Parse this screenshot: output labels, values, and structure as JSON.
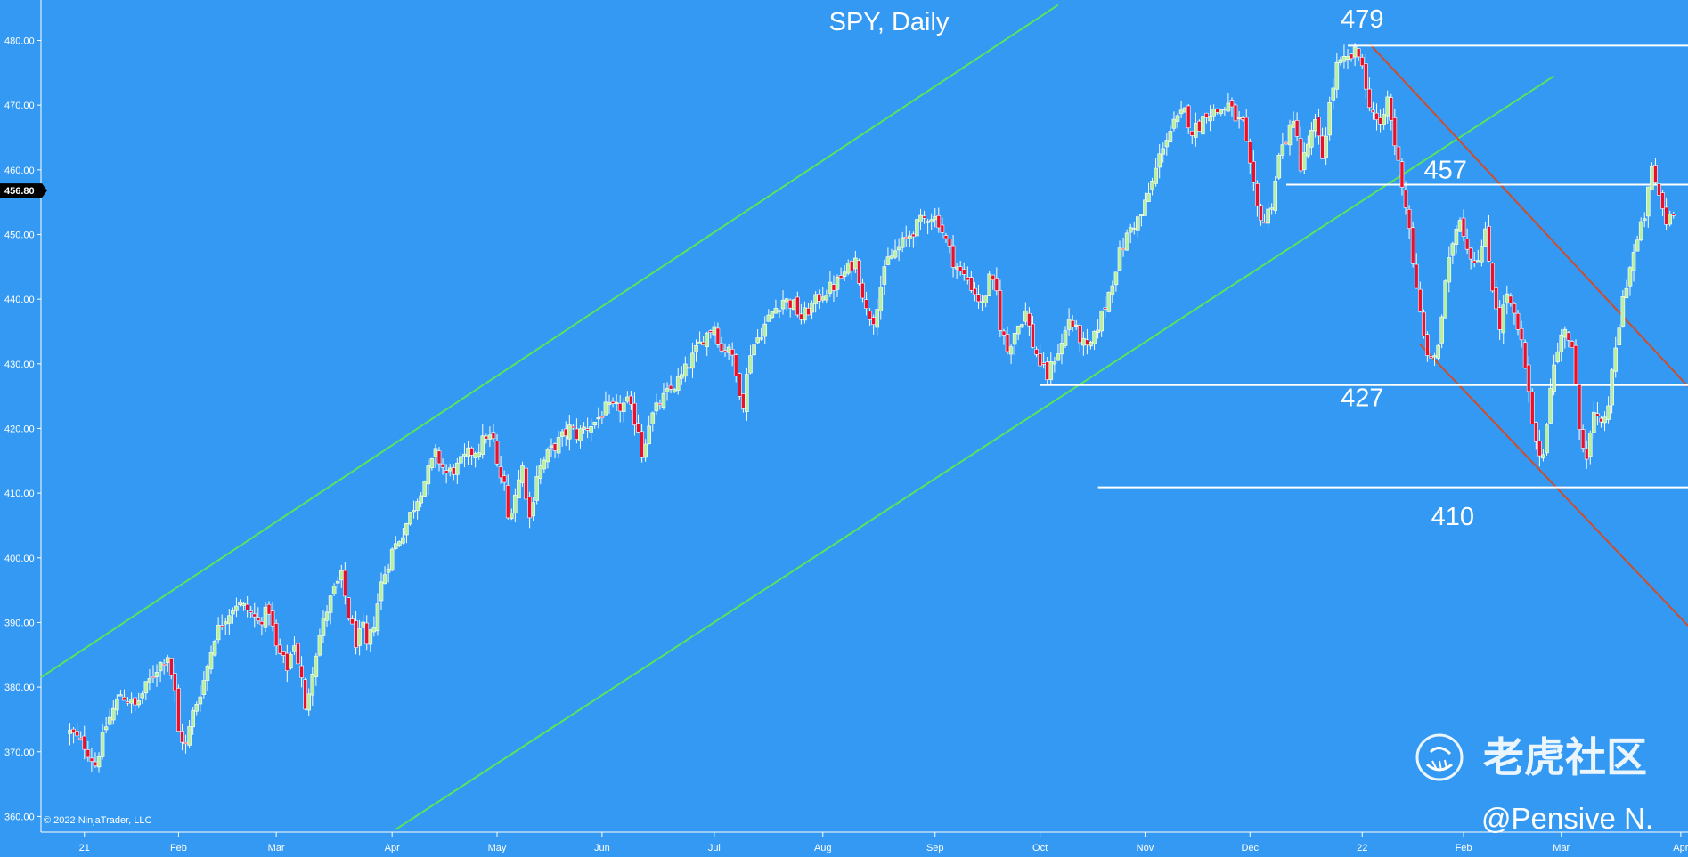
{
  "chart_data": {
    "type": "candlestick",
    "title": "SPY, Daily",
    "copyright": "© 2022 NinjaTrader, LLC",
    "watermark": {
      "logo_text": "老虎社区",
      "author": "@Pensive N."
    },
    "last_price_label": "456.80",
    "last_price": 456.8,
    "ylim": [
      358,
      482
    ],
    "y_ticks": [
      360,
      370,
      380,
      390,
      400,
      410,
      420,
      430,
      440,
      450,
      460,
      470,
      480
    ],
    "y_tick_labels": [
      "360.00",
      "370.00",
      "380.00",
      "390.00",
      "400.00",
      "410.00",
      "420.00",
      "430.00",
      "440.00",
      "450.00",
      "460.00",
      "470.00",
      "480.00"
    ],
    "x_ticks": [
      {
        "label": "21",
        "day": 4
      },
      {
        "label": "Feb",
        "day": 30
      },
      {
        "label": "Mar",
        "day": 57
      },
      {
        "label": "Apr",
        "day": 89
      },
      {
        "label": "May",
        "day": 118
      },
      {
        "label": "Jun",
        "day": 147
      },
      {
        "label": "Jul",
        "day": 178
      },
      {
        "label": "Aug",
        "day": 208
      },
      {
        "label": "Sep",
        "day": 239
      },
      {
        "label": "Oct",
        "day": 268
      },
      {
        "label": "Nov",
        "day": 297
      },
      {
        "label": "Dec",
        "day": 326
      },
      {
        "label": "22",
        "day": 357
      },
      {
        "label": "Feb",
        "day": 385
      },
      {
        "label": "Mar",
        "day": 412
      },
      {
        "label": "Apr",
        "day": 445
      }
    ],
    "xlim": [
      -8,
      447
    ],
    "price_path": [
      [
        0,
        373
      ],
      [
        4,
        371
      ],
      [
        7,
        368
      ],
      [
        10,
        374
      ],
      [
        14,
        379
      ],
      [
        18,
        377
      ],
      [
        21,
        380
      ],
      [
        24,
        383
      ],
      [
        27,
        385
      ],
      [
        29,
        379
      ],
      [
        30,
        373
      ],
      [
        32,
        371
      ],
      [
        34,
        376
      ],
      [
        37,
        381
      ],
      [
        40,
        388
      ],
      [
        43,
        391
      ],
      [
        46,
        393
      ],
      [
        49,
        392
      ],
      [
        52,
        390
      ],
      [
        55,
        392
      ],
      [
        57,
        386
      ],
      [
        60,
        383
      ],
      [
        62,
        387
      ],
      [
        64,
        381
      ],
      [
        65,
        376
      ],
      [
        67,
        383
      ],
      [
        69,
        388
      ],
      [
        71,
        392
      ],
      [
        73,
        395
      ],
      [
        75,
        397
      ],
      [
        77,
        391
      ],
      [
        79,
        387
      ],
      [
        81,
        389
      ],
      [
        82,
        386
      ],
      [
        84,
        390
      ],
      [
        86,
        396
      ],
      [
        89,
        401
      ],
      [
        92,
        404
      ],
      [
        95,
        408
      ],
      [
        98,
        412
      ],
      [
        101,
        416
      ],
      [
        104,
        413
      ],
      [
        107,
        414
      ],
      [
        110,
        416
      ],
      [
        113,
        417
      ],
      [
        115,
        419
      ],
      [
        117,
        418
      ],
      [
        118,
        414
      ],
      [
        120,
        411
      ],
      [
        121,
        406
      ],
      [
        123,
        410
      ],
      [
        125,
        414
      ],
      [
        127,
        406
      ],
      [
        129,
        413
      ],
      [
        132,
        416
      ],
      [
        135,
        418
      ],
      [
        138,
        420
      ],
      [
        140,
        419
      ],
      [
        142,
        420
      ],
      [
        145,
        421
      ],
      [
        148,
        423
      ],
      [
        151,
        423
      ],
      [
        154,
        424
      ],
      [
        157,
        420
      ],
      [
        158,
        416
      ],
      [
        160,
        421
      ],
      [
        163,
        424
      ],
      [
        166,
        426
      ],
      [
        169,
        428
      ],
      [
        172,
        431
      ],
      [
        175,
        434
      ],
      [
        178,
        436
      ],
      [
        180,
        432
      ],
      [
        182,
        433
      ],
      [
        184,
        428
      ],
      [
        186,
        424
      ],
      [
        188,
        432
      ],
      [
        190,
        434
      ],
      [
        192,
        436
      ],
      [
        194,
        438
      ],
      [
        197,
        440
      ],
      [
        200,
        439
      ],
      [
        202,
        437
      ],
      [
        205,
        439
      ],
      [
        208,
        441
      ],
      [
        211,
        442
      ],
      [
        214,
        444
      ],
      [
        217,
        446
      ],
      [
        219,
        441
      ],
      [
        220,
        438
      ],
      [
        222,
        437
      ],
      [
        224,
        442
      ],
      [
        226,
        446
      ],
      [
        229,
        448
      ],
      [
        232,
        450
      ],
      [
        235,
        452
      ],
      [
        238,
        453
      ],
      [
        240,
        452
      ],
      [
        242,
        449
      ],
      [
        244,
        446
      ],
      [
        246,
        444
      ],
      [
        248,
        443
      ],
      [
        250,
        441
      ],
      [
        252,
        439
      ],
      [
        254,
        443
      ],
      [
        256,
        441
      ],
      [
        257,
        436
      ],
      [
        259,
        432
      ],
      [
        261,
        435
      ],
      [
        264,
        438
      ],
      [
        266,
        433
      ],
      [
        268,
        430
      ],
      [
        270,
        428
      ],
      [
        272,
        431
      ],
      [
        274,
        433
      ],
      [
        276,
        437
      ],
      [
        278,
        435
      ],
      [
        279,
        434
      ],
      [
        281,
        432
      ],
      [
        283,
        434
      ],
      [
        284,
        436
      ],
      [
        286,
        439
      ],
      [
        288,
        443
      ],
      [
        290,
        447
      ],
      [
        293,
        451
      ],
      [
        296,
        453
      ],
      [
        299,
        458
      ],
      [
        302,
        464
      ],
      [
        305,
        467
      ],
      [
        308,
        469
      ],
      [
        310,
        466
      ],
      [
        312,
        467
      ],
      [
        314,
        469
      ],
      [
        317,
        469
      ],
      [
        320,
        470
      ],
      [
        322,
        468
      ],
      [
        324,
        467
      ],
      [
        326,
        460
      ],
      [
        328,
        454
      ],
      [
        330,
        452
      ],
      [
        332,
        455
      ],
      [
        334,
        462
      ],
      [
        336,
        465
      ],
      [
        338,
        467
      ],
      [
        339,
        466
      ],
      [
        340,
        460
      ],
      [
        342,
        464
      ],
      [
        344,
        467
      ],
      [
        346,
        462
      ],
      [
        348,
        470
      ],
      [
        350,
        476
      ],
      [
        353,
        477
      ],
      [
        355,
        478
      ],
      [
        357,
        477
      ],
      [
        358,
        472
      ],
      [
        360,
        469
      ],
      [
        362,
        466
      ],
      [
        364,
        471
      ],
      [
        366,
        464
      ],
      [
        368,
        458
      ],
      [
        370,
        451
      ],
      [
        372,
        441
      ],
      [
        374,
        434
      ],
      [
        376,
        430
      ],
      [
        378,
        433
      ],
      [
        380,
        442
      ],
      [
        382,
        449
      ],
      [
        384,
        453
      ],
      [
        386,
        448
      ],
      [
        388,
        446
      ],
      [
        390,
        448
      ],
      [
        391,
        450
      ],
      [
        393,
        442
      ],
      [
        395,
        436
      ],
      [
        397,
        441
      ],
      [
        399,
        437
      ],
      [
        401,
        433
      ],
      [
        403,
        425
      ],
      [
        405,
        417
      ],
      [
        407,
        416
      ],
      [
        409,
        427
      ],
      [
        411,
        432
      ],
      [
        413,
        436
      ],
      [
        415,
        432
      ],
      [
        417,
        420
      ],
      [
        419,
        416
      ],
      [
        421,
        422
      ],
      [
        423,
        420
      ],
      [
        425,
        424
      ],
      [
        427,
        432
      ],
      [
        429,
        440
      ],
      [
        431,
        445
      ],
      [
        433,
        449
      ],
      [
        435,
        453
      ],
      [
        437,
        460
      ],
      [
        439,
        456
      ],
      [
        441,
        452
      ],
      [
        443,
        454
      ]
    ],
    "annotations": [
      {
        "label": "479",
        "day": 357,
        "price": 479
      },
      {
        "label": "457",
        "day": 380,
        "price": 457
      },
      {
        "label": "427",
        "day": 357,
        "price": 427
      },
      {
        "label": "410",
        "day": 382,
        "price": 410
      }
    ],
    "horizontal_levels": [
      {
        "price": 479.2,
        "from_day": 353,
        "to_day": 447
      },
      {
        "price": 457.7,
        "from_day": 336,
        "to_day": 447
      },
      {
        "price": 426.7,
        "from_day": 268,
        "to_day": 447
      },
      {
        "price": 410.9,
        "from_day": 284,
        "to_day": 447
      }
    ],
    "trend_lines": [
      {
        "kind": "channel-upper",
        "color": "#5be35b",
        "from": [
          -8,
          381.5
        ],
        "to": [
          273,
          485.5
        ]
      },
      {
        "kind": "channel-lower",
        "color": "#5be35b",
        "from": [
          90,
          358
        ],
        "to": [
          410,
          474.5
        ]
      },
      {
        "kind": "down-channel-upper",
        "color": "#cc4e2c",
        "from": [
          359,
          479.5
        ],
        "to": [
          447,
          426.5
        ]
      },
      {
        "kind": "down-channel-lower",
        "color": "#cc4e2c",
        "from": [
          373,
          433
        ],
        "to": [
          447,
          389.5
        ]
      }
    ],
    "colors": {
      "background": "#3399f3",
      "up": "#b8f0a0",
      "down": "#e8102a",
      "wick": "#ffffff",
      "text": "#ffffff"
    }
  }
}
